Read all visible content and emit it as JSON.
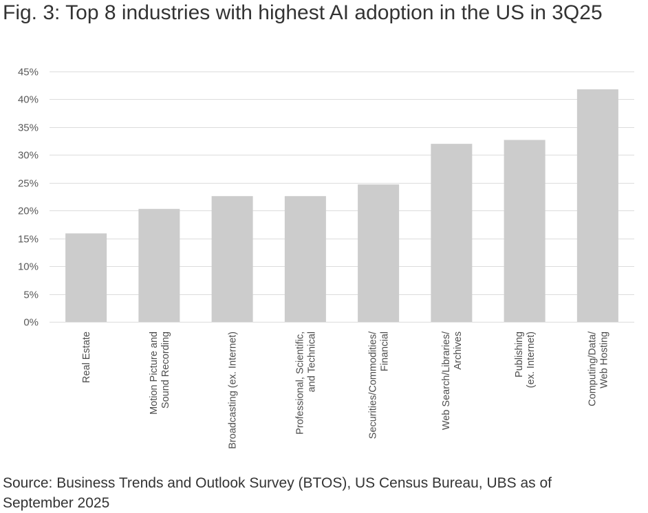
{
  "chart_data": {
    "type": "bar",
    "title": "Fig. 3: Top 8 industries with highest AI adoption in the US in 3Q25",
    "categories": [
      [
        "Real Estate"
      ],
      [
        "Motion Picture and",
        "Sound Recording"
      ],
      [
        "Broadcasting (ex. Internet)"
      ],
      [
        "Professional, Scientific,",
        "and Technical"
      ],
      [
        "Securities/Commodities/",
        "Financial"
      ],
      [
        "Web Search/Libraries/",
        "Archives"
      ],
      [
        "Publishing",
        "(ex. Internet)"
      ],
      [
        "Computing/Data/",
        "Web Hosting"
      ]
    ],
    "values": [
      15.9,
      20.3,
      22.6,
      22.6,
      24.7,
      32.0,
      32.7,
      41.8
    ],
    "ylim": [
      0,
      45
    ],
    "yticks": [
      0,
      5,
      10,
      15,
      20,
      25,
      30,
      35,
      40,
      45
    ],
    "ytick_labels": [
      "0%",
      "5%",
      "10%",
      "15%",
      "20%",
      "25%",
      "30%",
      "35%",
      "40%",
      "45%"
    ],
    "xlabel": "",
    "ylabel": "",
    "grid": true,
    "bar_color": "#cccccc",
    "source": "Source: Business Trends and Outlook Survey (BTOS), US Census Bureau, UBS as of September 2025"
  }
}
